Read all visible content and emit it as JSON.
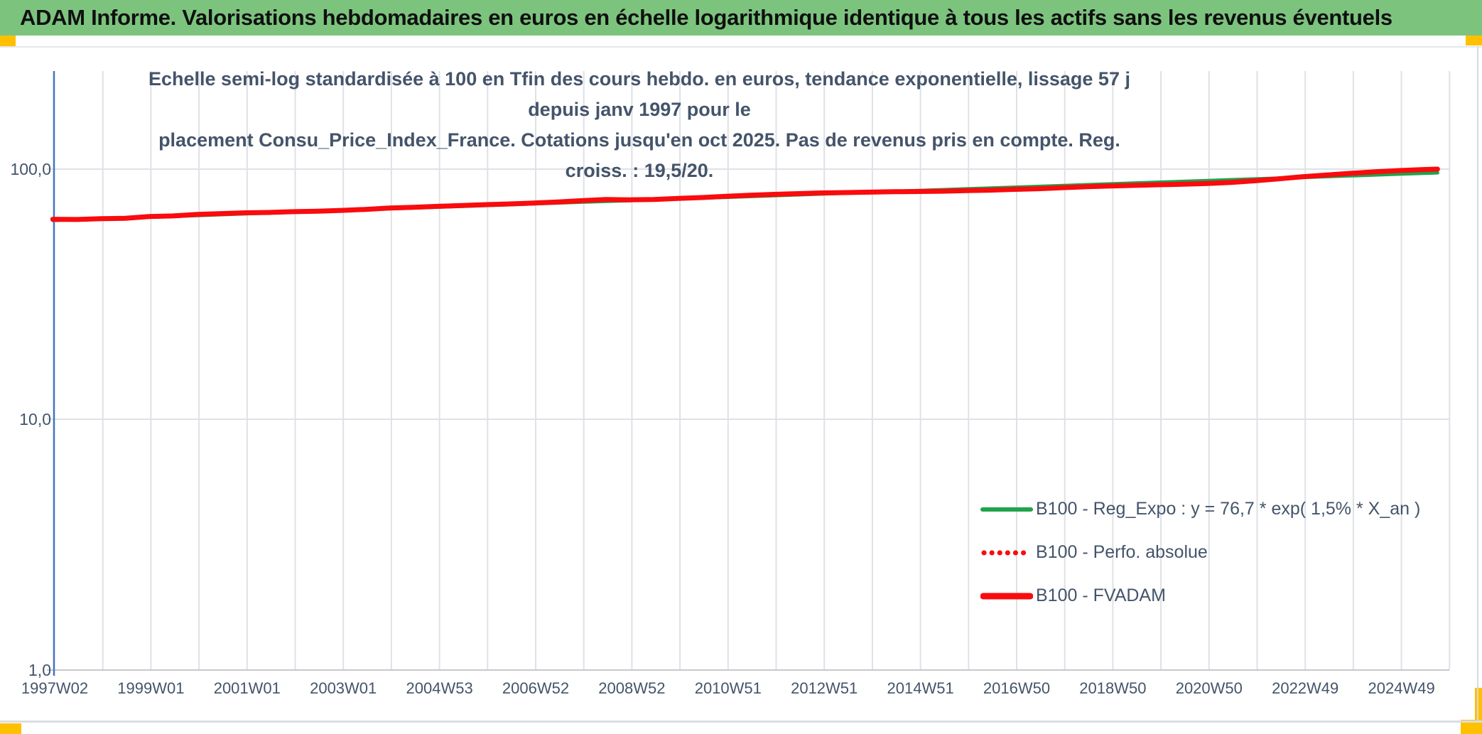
{
  "header": {
    "title": "ADAM Informe. Valorisations hebdomadaires en euros en échelle logarithmique identique à tous les actifs sans les revenus éventuels"
  },
  "chart_title": {
    "line1": "Echelle semi-log standardisée à 100 en Tfin des cours hebdo. en euros, tendance exponentielle, lissage 57 j depuis janv 1997 pour le",
    "line2": "placement Consu_Price_Index_France. Cotations jusqu'en oct 2025. Pas de revenus pris en compte. Reg. croiss. : 19,5/20."
  },
  "colors": {
    "header_green": "#7CC47E",
    "accent_gold": "#FFC000",
    "title_blue_gray": "#44546A",
    "axis_blue": "#4472C4",
    "gridline": "#DEE1E6",
    "baseline_gray": "#C6C9CE",
    "series_green": "#21A24C",
    "series_red": "#F90B0E"
  },
  "chart_data": {
    "type": "line",
    "y_scale": "log",
    "title": "Echelle semi-log standardisée à 100 en Tfin des cours hebdo. en euros, tendance exponentielle, lissage 57 j depuis janv 1997 pour le placement Consu_Price_Index_France. Cotations jusqu'en oct 2025. Pas de revenus pris en compte. Reg. croiss. : 19,5/20.",
    "xlabel": "",
    "ylabel": "",
    "ylim": [
      1,
      250
    ],
    "y_ticks": [
      100,
      10,
      1
    ],
    "y_tick_labels": [
      "100,0",
      "10,0",
      "1,0"
    ],
    "x_tick_labels": [
      "1997W02",
      "1999W01",
      "2001W01",
      "2003W01",
      "2004W53",
      "2006W52",
      "2008W52",
      "2010W51",
      "2012W51",
      "2014W51",
      "2016W50",
      "2018W50",
      "2020W50",
      "2022W49",
      "2024W49"
    ],
    "x_tick_years": [
      1997,
      1999,
      2001,
      2003,
      2005,
      2007,
      2009,
      2011,
      2013,
      2015,
      2017,
      2019,
      2021,
      2023,
      2025
    ],
    "x_range_years": [
      1997.04,
      2026.0
    ],
    "x_minor_grid_every_years": 1,
    "grid": true,
    "legend_position": "inside-lower-right",
    "series": [
      {
        "name": "B100 - Reg_Expo : y = 76,7 * exp( 1,5% *  X_an )",
        "color": "#21A24C",
        "style": "solid",
        "width": 5,
        "x": [
          1997,
          1998,
          1999,
          2000,
          2001,
          2002,
          2003,
          2004,
          2005,
          2006,
          2007,
          2008,
          2009,
          2010,
          2011,
          2012,
          2013,
          2014,
          2015,
          2016,
          2017,
          2018,
          2019,
          2020,
          2021,
          2022,
          2023,
          2024,
          2025,
          2025.79
        ],
        "y": [
          62.4,
          63.4,
          64.3,
          65.3,
          66.3,
          67.3,
          68.4,
          69.4,
          70.5,
          71.6,
          72.7,
          73.8,
          74.9,
          76.1,
          77.2,
          78.4,
          79.6,
          80.8,
          82.1,
          83.3,
          84.6,
          85.9,
          87.2,
          88.6,
          89.9,
          91.3,
          92.7,
          94.1,
          95.6,
          96.7
        ]
      },
      {
        "name": "B100 - Perfo. absolue",
        "color": "#F90B0E",
        "style": "dotted",
        "width": 5,
        "x": [
          1997,
          1997.5,
          1998,
          1998.5,
          1999,
          1999.5,
          2000,
          2000.5,
          2001,
          2001.5,
          2002,
          2002.5,
          2003,
          2003.5,
          2004,
          2004.5,
          2005,
          2005.5,
          2006,
          2006.5,
          2007,
          2007.5,
          2008,
          2008.5,
          2009,
          2009.5,
          2010,
          2010.5,
          2011,
          2011.5,
          2012,
          2012.5,
          2013,
          2013.5,
          2014,
          2014.5,
          2015,
          2015.5,
          2016,
          2016.5,
          2017,
          2017.5,
          2018,
          2018.5,
          2019,
          2019.5,
          2020,
          2020.5,
          2021,
          2021.5,
          2022,
          2022.5,
          2023,
          2023.5,
          2024,
          2024.5,
          2025,
          2025.5,
          2025.79
        ],
        "y": [
          63.0,
          62.9,
          63.4,
          63.6,
          64.6,
          65.0,
          65.9,
          66.4,
          66.9,
          67.1,
          67.6,
          67.9,
          68.4,
          69.0,
          69.9,
          70.4,
          71.0,
          71.5,
          72.1,
          72.6,
          73.2,
          73.9,
          74.8,
          75.6,
          75.4,
          75.6,
          76.4,
          77.0,
          77.9,
          78.6,
          79.3,
          79.8,
          80.3,
          80.6,
          80.9,
          81.2,
          81.4,
          81.6,
          82.0,
          82.4,
          83.0,
          83.5,
          84.3,
          85.0,
          85.6,
          86.1,
          86.6,
          87.0,
          87.6,
          88.4,
          89.8,
          91.5,
          93.3,
          94.8,
          96.2,
          97.6,
          98.7,
          99.6,
          100.0
        ]
      },
      {
        "name": "B100 - FVADAM",
        "color": "#F90B0E",
        "style": "solid",
        "width": 7,
        "x": [
          1997,
          1997.5,
          1998,
          1998.5,
          1999,
          1999.5,
          2000,
          2000.5,
          2001,
          2001.5,
          2002,
          2002.5,
          2003,
          2003.5,
          2004,
          2004.5,
          2005,
          2005.5,
          2006,
          2006.5,
          2007,
          2007.5,
          2008,
          2008.5,
          2009,
          2009.5,
          2010,
          2010.5,
          2011,
          2011.5,
          2012,
          2012.5,
          2013,
          2013.5,
          2014,
          2014.5,
          2015,
          2015.5,
          2016,
          2016.5,
          2017,
          2017.5,
          2018,
          2018.5,
          2019,
          2019.5,
          2020,
          2020.5,
          2021,
          2021.5,
          2022,
          2022.5,
          2023,
          2023.5,
          2024,
          2024.5,
          2025,
          2025.5,
          2025.79
        ],
        "y": [
          63.0,
          62.9,
          63.4,
          63.6,
          64.6,
          65.0,
          65.9,
          66.4,
          66.9,
          67.1,
          67.6,
          67.9,
          68.4,
          69.0,
          69.9,
          70.4,
          71.0,
          71.5,
          72.1,
          72.6,
          73.2,
          73.9,
          74.8,
          75.6,
          75.4,
          75.6,
          76.4,
          77.0,
          77.9,
          78.6,
          79.3,
          79.8,
          80.3,
          80.6,
          80.9,
          81.2,
          81.4,
          81.6,
          82.0,
          82.4,
          83.0,
          83.5,
          84.3,
          85.0,
          85.6,
          86.1,
          86.6,
          87.0,
          87.6,
          88.4,
          89.8,
          91.5,
          93.3,
          94.8,
          96.2,
          97.6,
          98.7,
          99.6,
          100.0
        ]
      }
    ]
  }
}
